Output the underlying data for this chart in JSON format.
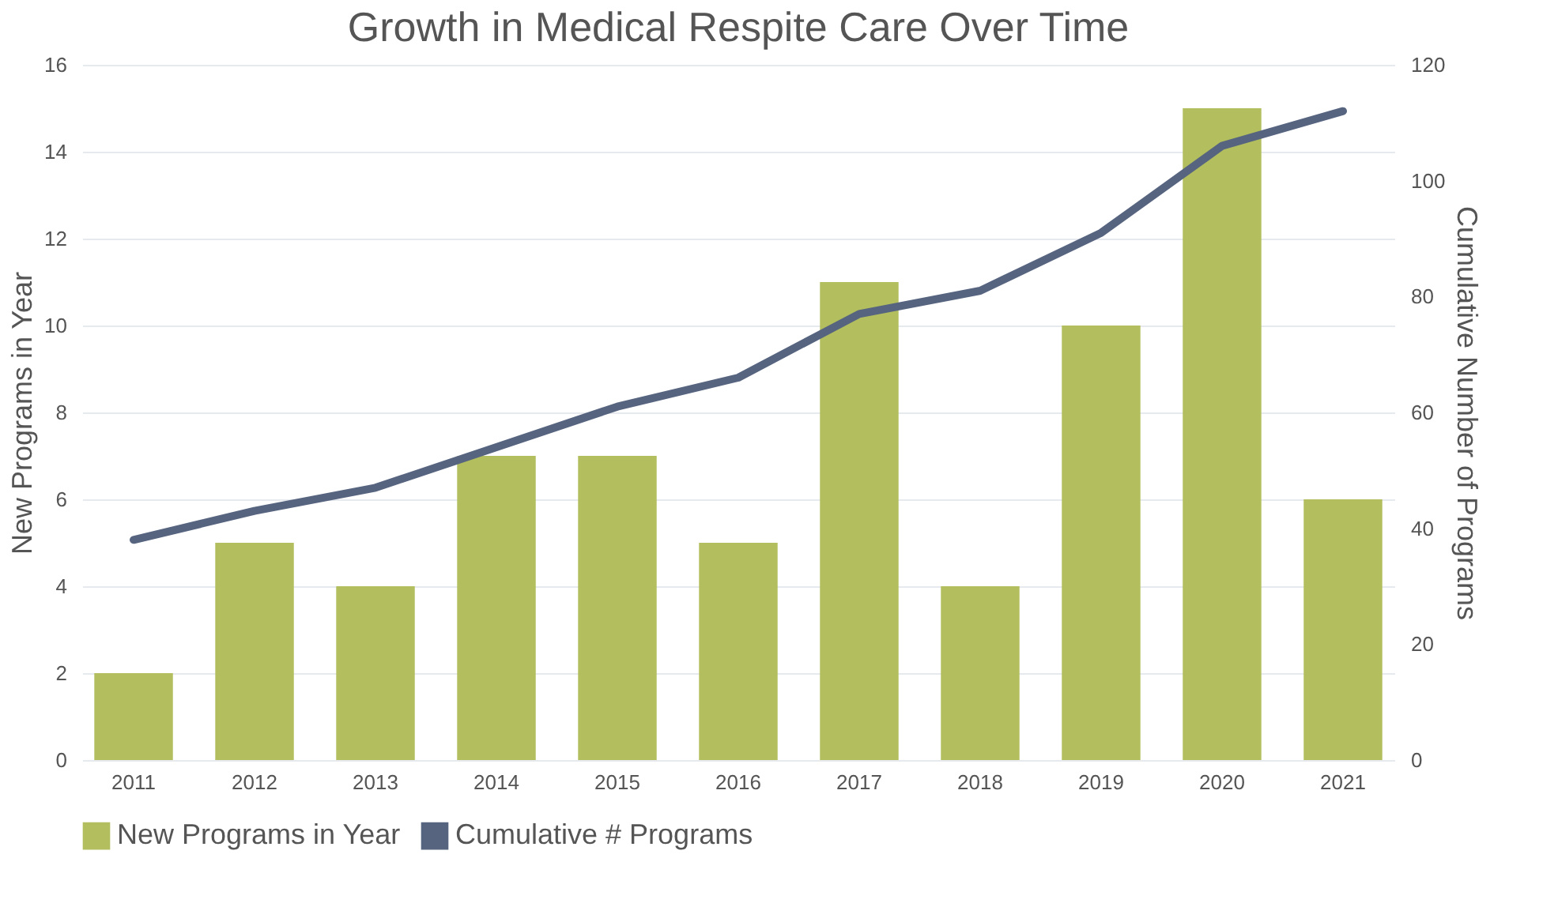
{
  "chart_data": {
    "type": "bar",
    "title": "Growth in Medical Respite Care Over Time",
    "ylabel": "New Programs in Year",
    "y2label": "Cumulative Number of Programs",
    "categories": [
      "2011",
      "2012",
      "2013",
      "2014",
      "2015",
      "2016",
      "2017",
      "2018",
      "2019",
      "2020",
      "2021"
    ],
    "series": [
      {
        "name": "New Programs in Year",
        "color": "#b3bf5e",
        "values": [
          2,
          5,
          4,
          7,
          7,
          5,
          11,
          4,
          10,
          15,
          6
        ]
      },
      {
        "name": "Cumulative # Programs",
        "color": "#56647f",
        "type": "line",
        "axis": "y2",
        "values": [
          38,
          43,
          47,
          54,
          61,
          66,
          77,
          81,
          91,
          106,
          112
        ]
      }
    ],
    "ylim": [
      0,
      16
    ],
    "yticks": [
      0,
      2,
      4,
      6,
      8,
      10,
      12,
      14,
      16
    ],
    "y2lim": [
      0,
      120
    ],
    "y2ticks": [
      0,
      20,
      40,
      60,
      80,
      100,
      120
    ],
    "grid": "y",
    "legend": "bottom",
    "marker": "none",
    "line_style": "solid"
  }
}
